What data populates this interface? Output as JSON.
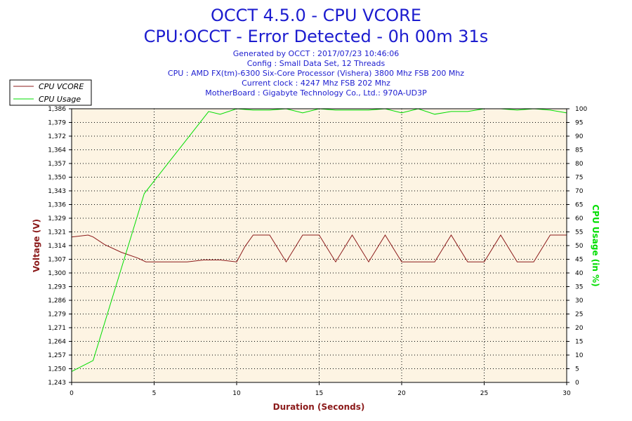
{
  "header": {
    "title": "OCCT 4.5.0 - CPU VCORE",
    "subtitle": "CPU:OCCT - Error Detected - 0h 00m 31s",
    "info": [
      "Generated by OCCT : 2017/07/23 10:46:06",
      "Config : Small Data Set, 12 Threads",
      "CPU : AMD FX(tm)-6300 Six-Core Processor (Vishera) 3800 Mhz FSB 200 Mhz",
      "Current clock : 4247 Mhz FSB 202 Mhz",
      "MotherBoard : Gigabyte Technology Co., Ltd.: 970A-UD3P"
    ]
  },
  "colors": {
    "background": "#ffffff",
    "plot_background": "#fdf4e3",
    "vcore": "#8b1a1a",
    "usage": "#00dd00",
    "title": "#1c1ccf",
    "info": "#2020d0",
    "grid": "#000000"
  },
  "chart_data": {
    "type": "line",
    "title": "OCCT 4.5.0 - CPU VCORE",
    "xlabel": "Duration (Seconds)",
    "ylabel_left": "Voltage (V)",
    "ylabel_right": "CPU Usage (in %)",
    "xlim": [
      0,
      30
    ],
    "ylim_left": [
      1.243,
      1.386
    ],
    "ylim_right": [
      0,
      100
    ],
    "x_ticks": [
      0,
      5,
      10,
      15,
      20,
      25,
      30
    ],
    "y_left_ticks": [
      "1,243",
      "1,250",
      "1,257",
      "1,264",
      "1,271",
      "1,279",
      "1,286",
      "1,293",
      "1,300",
      "1,307",
      "1,314",
      "1,321",
      "1,329",
      "1,336",
      "1,343",
      "1,350",
      "1,357",
      "1,364",
      "1,372",
      "1,379",
      "1,386"
    ],
    "y_right_ticks": [
      0,
      5,
      10,
      15,
      20,
      25,
      30,
      35,
      40,
      45,
      50,
      55,
      60,
      65,
      70,
      75,
      80,
      85,
      90,
      95,
      100
    ],
    "grid": true,
    "legend_position": "top-left",
    "series": [
      {
        "name": "CPU VCORE",
        "axis": "left",
        "color": "#8b1a1a",
        "points": [
          [
            0,
            1.319
          ],
          [
            1,
            1.32
          ],
          [
            1.3,
            1.319
          ],
          [
            2,
            1.315
          ],
          [
            3,
            1.311
          ],
          [
            4,
            1.308
          ],
          [
            4.5,
            1.306
          ],
          [
            5,
            1.306
          ],
          [
            6,
            1.306
          ],
          [
            7,
            1.306
          ],
          [
            8,
            1.307
          ],
          [
            9,
            1.307
          ],
          [
            10,
            1.306
          ],
          [
            10.5,
            1.314
          ],
          [
            11,
            1.32
          ],
          [
            12,
            1.32
          ],
          [
            13,
            1.306
          ],
          [
            14,
            1.32
          ],
          [
            15,
            1.32
          ],
          [
            16,
            1.306
          ],
          [
            17,
            1.32
          ],
          [
            18,
            1.306
          ],
          [
            19,
            1.32
          ],
          [
            20,
            1.306
          ],
          [
            21,
            1.306
          ],
          [
            22,
            1.306
          ],
          [
            23,
            1.32
          ],
          [
            24,
            1.306
          ],
          [
            25,
            1.306
          ],
          [
            26,
            1.32
          ],
          [
            27,
            1.306
          ],
          [
            28,
            1.306
          ],
          [
            29,
            1.32
          ],
          [
            30,
            1.32
          ]
        ]
      },
      {
        "name": "CPU Usage",
        "axis": "right",
        "color": "#00dd00",
        "points": [
          [
            0,
            4
          ],
          [
            1.3,
            8
          ],
          [
            4.4,
            69
          ],
          [
            8.3,
            99
          ],
          [
            9,
            98
          ],
          [
            10,
            100
          ],
          [
            11,
            99.5
          ],
          [
            12,
            99.5
          ],
          [
            13,
            100
          ],
          [
            14,
            98.5
          ],
          [
            15,
            100
          ],
          [
            16,
            99.5
          ],
          [
            17,
            99.5
          ],
          [
            18,
            99.5
          ],
          [
            19,
            100
          ],
          [
            20,
            98.5
          ],
          [
            21,
            100
          ],
          [
            22,
            98
          ],
          [
            23,
            99
          ],
          [
            24,
            99
          ],
          [
            25,
            100
          ],
          [
            26,
            100
          ],
          [
            27,
            99.5
          ],
          [
            28,
            100
          ],
          [
            29,
            99.5
          ],
          [
            30,
            98.5
          ]
        ]
      }
    ]
  }
}
